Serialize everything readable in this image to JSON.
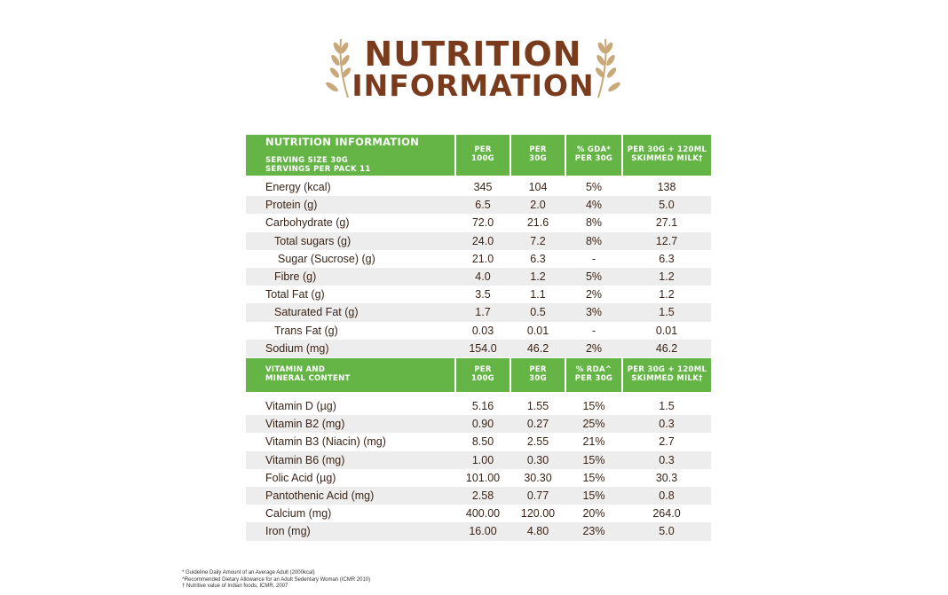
{
  "title": {
    "line1": "NUTRITION",
    "line2": "INFORMATION"
  },
  "table1": {
    "header": {
      "col0_title": "NUTRITION INFORMATION",
      "col0_sub": "SERVING SIZE 30G\nSERVINGS PER PACK 11",
      "col1": "PER\n100G",
      "col2": "PER\n30G",
      "col3": "% GDA*\nPER 30G",
      "col4": "PER 30G + 120ML\nSKIMMED MILK†"
    },
    "rows": [
      {
        "label": "Energy (kcal)",
        "indent": 0,
        "v1": "345",
        "v2": "104",
        "v3": "5%",
        "v4": "138"
      },
      {
        "label": "Protein (g)",
        "indent": 0,
        "v1": "6.5",
        "v2": "2.0",
        "v3": "4%",
        "v4": "5.0"
      },
      {
        "label": "Carbohydrate (g)",
        "indent": 0,
        "v1": "72.0",
        "v2": "21.6",
        "v3": "8%",
        "v4": "27.1"
      },
      {
        "label": "Total sugars (g)",
        "indent": 1,
        "v1": "24.0",
        "v2": "7.2",
        "v3": "8%",
        "v4": "12.7"
      },
      {
        "label": "Sugar (Sucrose) (g)",
        "indent": 2,
        "v1": "21.0",
        "v2": "6.3",
        "v3": "-",
        "v4": "6.3"
      },
      {
        "label": "Fibre (g)",
        "indent": 1,
        "v1": "4.0",
        "v2": "1.2",
        "v3": "5%",
        "v4": "1.2"
      },
      {
        "label": "Total Fat (g)",
        "indent": 0,
        "v1": "3.5",
        "v2": "1.1",
        "v3": "2%",
        "v4": "1.2"
      },
      {
        "label": "Saturated Fat (g)",
        "indent": 1,
        "v1": "1.7",
        "v2": "0.5",
        "v3": "3%",
        "v4": "1.5"
      },
      {
        "label": "Trans Fat (g)",
        "indent": 1,
        "v1": "0.03",
        "v2": "0.01",
        "v3": "-",
        "v4": "0.01"
      },
      {
        "label": "Sodium (mg)",
        "indent": 0,
        "v1": "154.0",
        "v2": "46.2",
        "v3": "2%",
        "v4": "46.2"
      }
    ]
  },
  "table2": {
    "header": {
      "col0_title": "VITAMIN AND\nMINERAL CONTENT",
      "col1": "PER\n100G",
      "col2": "PER\n30G",
      "col3": "% RDA^\nPER 30G",
      "col4": "PER 30G + 120ML\nSKIMMED MILK†"
    },
    "rows": [
      {
        "label": "Vitamin D (µg)",
        "indent": 0,
        "v1": "5.16",
        "v2": "1.55",
        "v3": "15%",
        "v4": "1.5"
      },
      {
        "label": "Vitamin B2 (mg)",
        "indent": 0,
        "v1": "0.90",
        "v2": "0.27",
        "v3": "25%",
        "v4": "0.3"
      },
      {
        "label": "Vitamin B3 (Niacin) (mg)",
        "indent": 0,
        "v1": "8.50",
        "v2": "2.55",
        "v3": "21%",
        "v4": "2.7"
      },
      {
        "label": "Vitamin B6 (mg)",
        "indent": 0,
        "v1": "1.00",
        "v2": "0.30",
        "v3": "15%",
        "v4": "0.3"
      },
      {
        "label": "Folic Acid (µg)",
        "indent": 0,
        "v1": "101.00",
        "v2": "30.30",
        "v3": "15%",
        "v4": "30.3"
      },
      {
        "label": "Pantothenic Acid (mg)",
        "indent": 0,
        "v1": "2.58",
        "v2": "0.77",
        "v3": "15%",
        "v4": "0.8"
      },
      {
        "label": "Calcium (mg)",
        "indent": 0,
        "v1": "400.00",
        "v2": "120.00",
        "v3": "20%",
        "v4": "264.0"
      },
      {
        "label": "Iron  (mg)",
        "indent": 0,
        "v1": "16.00",
        "v2": "4.80",
        "v3": "23%",
        "v4": "5.0"
      }
    ]
  },
  "footnotes": [
    "* Guideline Daily Amount of an Average Adult (2000kcal)",
    "^Recommended Dietary Allowance for an Adult Sedentary Woman (ICMR 2010)",
    "† Nutritive value of Indian foods, ICMR, 2007"
  ],
  "colors": {
    "header_green": "#64b545",
    "title_brown": "#7a3a1c",
    "row_shade": "#ededed",
    "wheat": "#c9a87a"
  },
  "icons": {
    "title_decoration": "wheat-icon"
  }
}
